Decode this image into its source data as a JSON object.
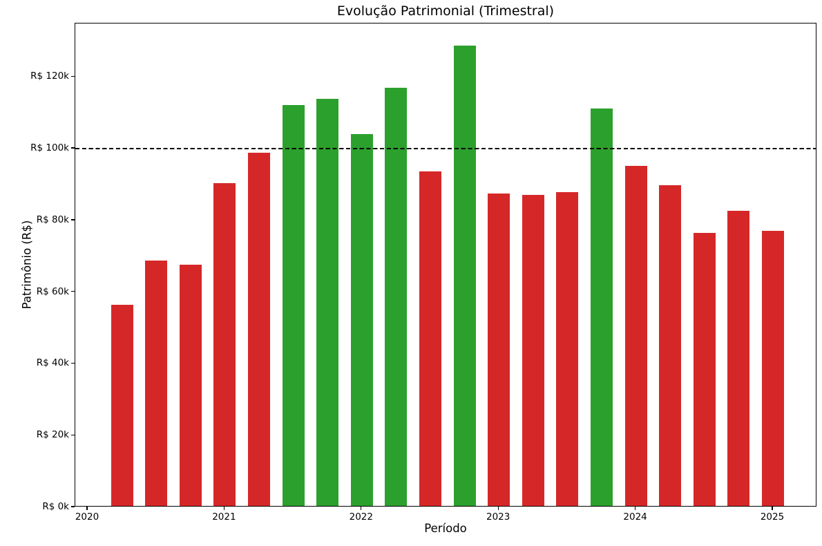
{
  "chart_data": {
    "type": "bar",
    "title": "Evolução Patrimonial (Trimestral)",
    "xlabel": "Período",
    "ylabel": "Patrimônio (R$)",
    "categories": [
      "2020-Q2",
      "2020-Q3",
      "2020-Q4",
      "2021-Q1",
      "2021-Q2",
      "2021-Q3",
      "2021-Q4",
      "2022-Q1",
      "2022-Q2",
      "2022-Q3",
      "2022-Q4",
      "2023-Q1",
      "2023-Q2",
      "2023-Q3",
      "2023-Q4",
      "2024-Q1",
      "2024-Q2",
      "2024-Q3",
      "2024-Q4",
      "2025-Q1"
    ],
    "values": [
      56000,
      68400,
      67200,
      90000,
      98400,
      111700,
      113500,
      103600,
      116500,
      93300,
      128300,
      87200,
      86800,
      87500,
      110800,
      94800,
      89400,
      76100,
      82300,
      76700
    ],
    "colors": {
      "above_threshold": "#2ca02c",
      "below_threshold": "#d62728"
    },
    "color_rule": "green if value >= 100000 else red",
    "reference_line": {
      "value": 100000,
      "color": "#000000",
      "style": "dashed"
    },
    "x_ticks": {
      "labels": [
        "2020",
        "2021",
        "2022",
        "2023",
        "2024",
        "2025"
      ],
      "quarter_offsets": [
        0,
        4,
        8,
        12,
        16,
        20
      ]
    },
    "y_ticks": {
      "values": [
        0,
        20000,
        40000,
        60000,
        80000,
        100000,
        120000
      ],
      "labels": [
        "R$ 0k",
        "R$ 20k",
        "R$ 40k",
        "R$ 60k",
        "R$ 80k",
        "R$ 100k",
        "R$ 120k"
      ]
    },
    "ylim": [
      0,
      134900
    ],
    "grid": false,
    "legend": false,
    "text_color": "#000000",
    "background_color": "#ffffff"
  }
}
